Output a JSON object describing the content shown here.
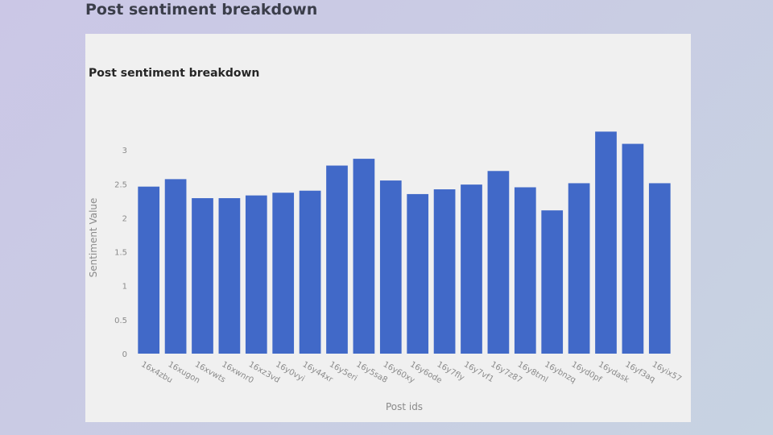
{
  "page": {
    "heading": "Post sentiment breakdown"
  },
  "colors": {
    "bar": "#4169c8",
    "card_background": "#f0f0f0",
    "tick_text": "#8a8a8a"
  },
  "chart_data": {
    "type": "bar",
    "title": "Post sentiment breakdown",
    "xlabel": "Post ids",
    "ylabel": "Sentiment Value",
    "categories": [
      "16x4zbu",
      "16xugon",
      "16xvwts",
      "16xwnr0",
      "16xz3vd",
      "16y0vyi",
      "16y44xr",
      "16y5eri",
      "16y5sa8",
      "16y60xy",
      "16y6ode",
      "16y7fly",
      "16y7vf1",
      "16y7z87",
      "16y8tml",
      "16ybnzq",
      "16yd0pf",
      "16ydask",
      "16yf3aq",
      "16yix57"
    ],
    "values": [
      2.46,
      2.57,
      2.29,
      2.29,
      2.33,
      2.37,
      2.4,
      2.77,
      2.87,
      2.55,
      2.35,
      2.42,
      2.49,
      2.69,
      2.45,
      2.11,
      2.51,
      3.27,
      3.09,
      2.51
    ],
    "ylim": [
      0,
      3.5
    ],
    "yticks": [
      0,
      0.5,
      1,
      1.5,
      2,
      2.5,
      3
    ],
    "ytick_labels": [
      "0",
      "0.5",
      "1",
      "1.5",
      "2",
      "2.5",
      "3"
    ],
    "grid": false,
    "legend": "none"
  }
}
